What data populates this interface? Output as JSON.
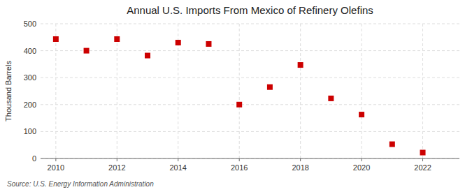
{
  "chart_data": {
    "type": "scatter",
    "title": "Annual U.S. Imports From Mexico of Refinery Olefins",
    "y_label": "Thousand Barrels",
    "source": "Source: U.S. Energy Information Administration",
    "x": [
      2010,
      2011,
      2012,
      2013,
      2014,
      2015,
      2016,
      2017,
      2018,
      2019,
      2020,
      2021,
      2022
    ],
    "values": [
      443,
      400,
      443,
      382,
      430,
      425,
      200,
      265,
      347,
      223,
      163,
      53,
      22
    ],
    "color": "#cc0000",
    "marker": "square",
    "xlim": [
      2009.5,
      2023.2
    ],
    "ylim": [
      0,
      500
    ],
    "xticks": [
      2010,
      2012,
      2014,
      2016,
      2018,
      2020,
      2022
    ],
    "yticks": [
      0,
      100,
      200,
      300,
      400,
      500
    ],
    "grid": true
  }
}
